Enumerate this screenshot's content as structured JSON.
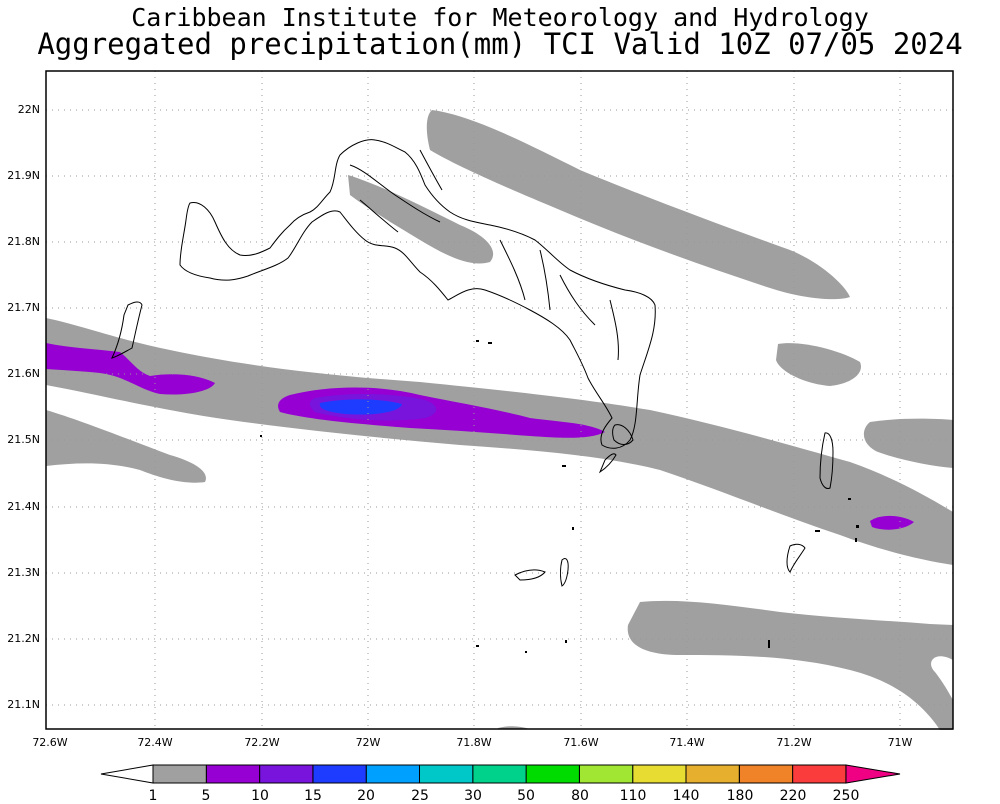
{
  "title": {
    "line1": "Caribbean Institute for Meteorology and Hydrology",
    "line2": "Aggregated precipitation(mm) TCI Valid 10Z 07/05 2024"
  },
  "map": {
    "lat_labels": [
      "22N",
      "21.9N",
      "21.8N",
      "21.7N",
      "21.6N",
      "21.5N",
      "21.4N",
      "21.3N",
      "21.2N",
      "21.1N"
    ],
    "lon_labels": [
      "72.6W",
      "72.4W",
      "72.2W",
      "72W",
      "71.8W",
      "71.6W",
      "71.4W",
      "71.2W",
      "71W"
    ],
    "grid": "dotted",
    "colors": {
      "land_outline": "#000000",
      "gridline": "#999999"
    }
  },
  "colorbar": {
    "levels": [
      "1",
      "5",
      "10",
      "15",
      "20",
      "25",
      "30",
      "50",
      "80",
      "110",
      "140",
      "180",
      "220",
      "250"
    ],
    "colors": [
      "#a0a0a0",
      "#9600d2",
      "#7814dc",
      "#1e3cff",
      "#00a0ff",
      "#00c8c8",
      "#00d28c",
      "#00dc00",
      "#a0e632",
      "#e6dc32",
      "#e6af2d",
      "#f08228",
      "#fa3c3c",
      "#f00082"
    ],
    "below_color": "#ffffff",
    "above_color": "#f00082"
  }
}
